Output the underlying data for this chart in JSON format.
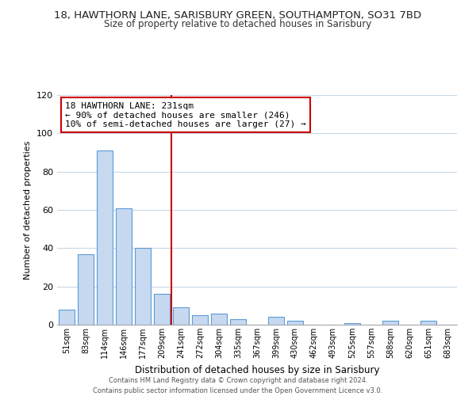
{
  "title_line1": "18, HAWTHORN LANE, SARISBURY GREEN, SOUTHAMPTON, SO31 7BD",
  "title_line2": "Size of property relative to detached houses in Sarisbury",
  "xlabel": "Distribution of detached houses by size in Sarisbury",
  "ylabel": "Number of detached properties",
  "bar_labels": [
    "51sqm",
    "83sqm",
    "114sqm",
    "146sqm",
    "177sqm",
    "209sqm",
    "241sqm",
    "272sqm",
    "304sqm",
    "335sqm",
    "367sqm",
    "399sqm",
    "430sqm",
    "462sqm",
    "493sqm",
    "525sqm",
    "557sqm",
    "588sqm",
    "620sqm",
    "651sqm",
    "683sqm"
  ],
  "bar_values": [
    8,
    37,
    91,
    61,
    40,
    16,
    9,
    5,
    6,
    3,
    0,
    4,
    2,
    0,
    0,
    1,
    0,
    2,
    0,
    2,
    0
  ],
  "bar_color": "#c6d9f0",
  "bar_edge_color": "#5b9bd5",
  "vline_index": 6,
  "vline_color": "#cc0000",
  "annotation_line1": "18 HAWTHORN LANE: 231sqm",
  "annotation_line2": "← 90% of detached houses are smaller (246)",
  "annotation_line3": "10% of semi-detached houses are larger (27) →",
  "annotation_box_color": "#ffffff",
  "annotation_box_edge": "#cc0000",
  "ylim": [
    0,
    120
  ],
  "yticks": [
    0,
    20,
    40,
    60,
    80,
    100,
    120
  ],
  "footer_line1": "Contains HM Land Registry data © Crown copyright and database right 2024.",
  "footer_line2": "Contains public sector information licensed under the Open Government Licence v3.0.",
  "background_color": "#ffffff",
  "grid_color": "#c8d8e8"
}
